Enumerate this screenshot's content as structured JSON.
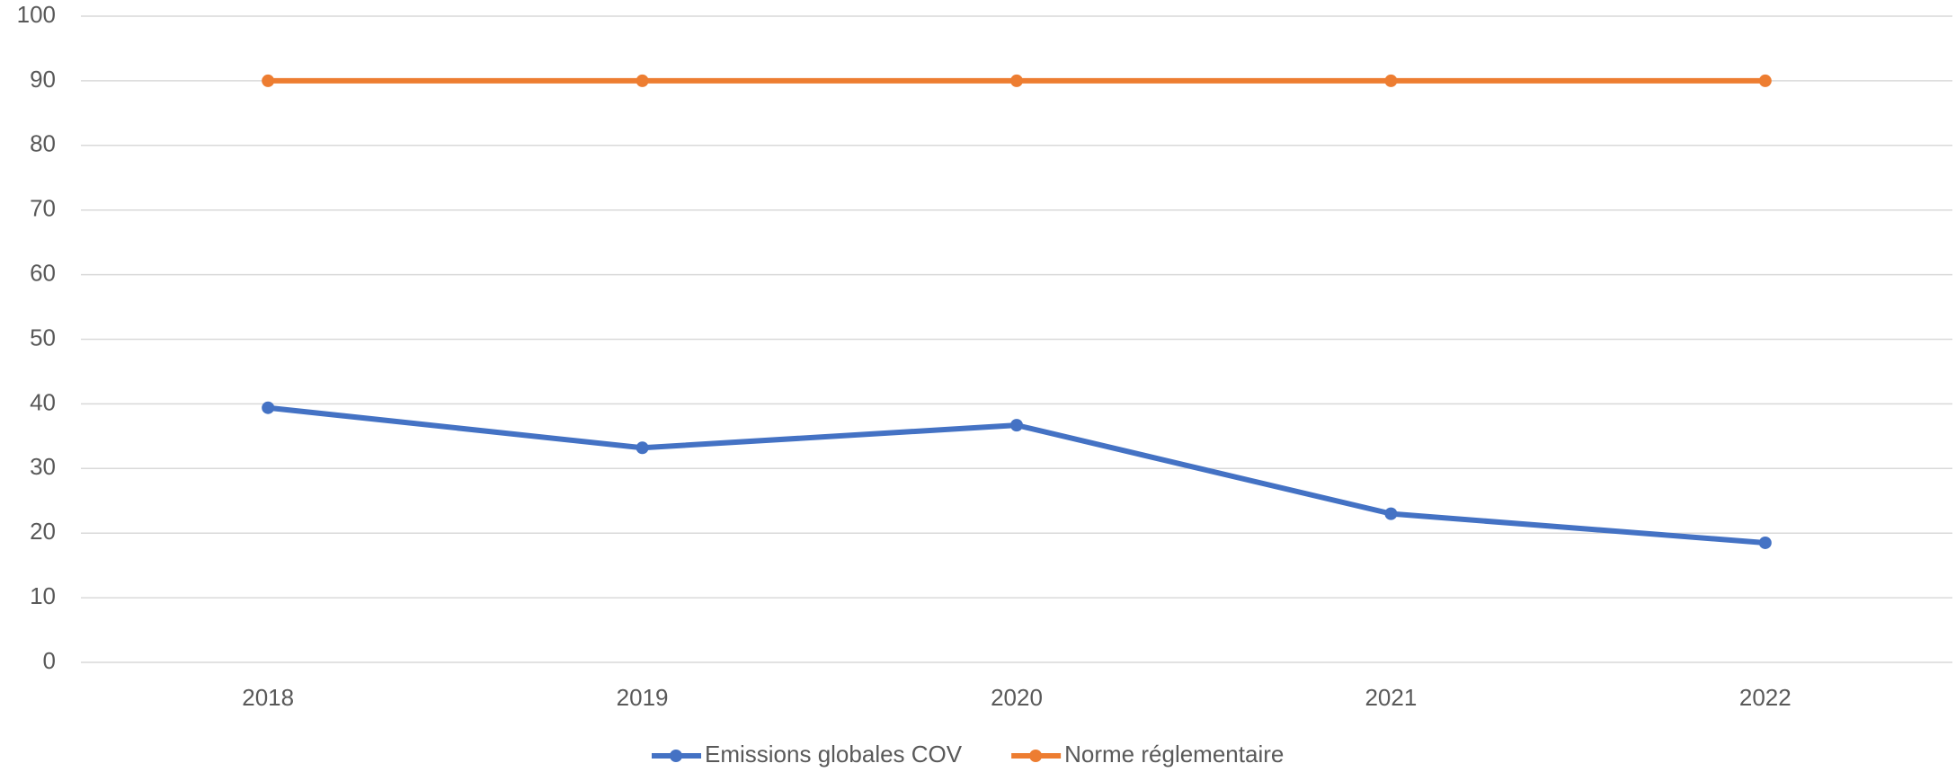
{
  "chart_data": {
    "type": "line",
    "categories": [
      "2018",
      "2019",
      "2020",
      "2021",
      "2022"
    ],
    "series": [
      {
        "name": "Emissions globales COV",
        "color": "#4472c4",
        "values": [
          39.4,
          33.2,
          36.7,
          23.0,
          18.5
        ]
      },
      {
        "name": "Norme réglementaire",
        "color": "#ed7d31",
        "values": [
          90,
          90,
          90,
          90,
          90
        ]
      }
    ],
    "ylim": [
      0,
      100
    ],
    "yticks": [
      0,
      10,
      20,
      30,
      40,
      50,
      60,
      70,
      80,
      90,
      100
    ],
    "grid": true,
    "legend": "bottom"
  }
}
